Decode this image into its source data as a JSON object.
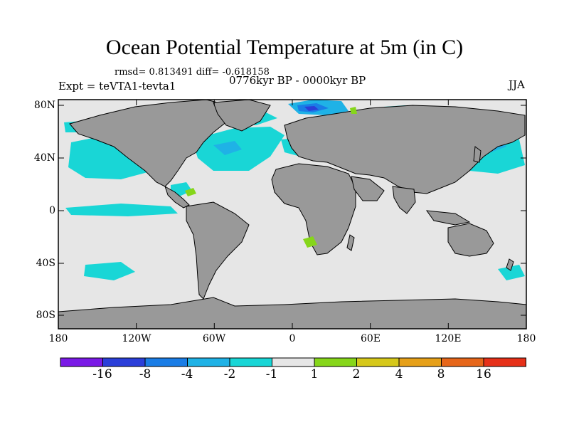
{
  "title": "Ocean Potential Temperature at 5m (in C)",
  "stats": "rmsd= 0.813491 diff= -0.618158",
  "experiment": "Expt = teVTA1-tevta1",
  "period": "0776kyr BP - 0000kyr BP",
  "season": "JJA",
  "y_ticks": [
    "80N",
    "40N",
    "0",
    "40S",
    "80S"
  ],
  "x_ticks": [
    "180",
    "120W",
    "60W",
    "0",
    "60E",
    "120E",
    "180"
  ],
  "colors": {
    "land": "#999999",
    "ocean_neutral": "#e6e6e6",
    "cool_minus1": "#19d6d6",
    "cool_minus2": "#1fb2e6",
    "cool_minus4": "#1a7de6",
    "cool_minus8": "#2b3fd9",
    "warm_plus1": "#86d61a"
  },
  "legend": {
    "labels": [
      "-16",
      "-8",
      "-4",
      "-2",
      "-1",
      "1",
      "2",
      "4",
      "8",
      "16"
    ],
    "colors": [
      "#7a1ae6",
      "#2b3fd9",
      "#1a7de6",
      "#1fb2e6",
      "#19d6d6",
      "#e6e6e6",
      "#86d61a",
      "#d6c81a",
      "#e6a019",
      "#e6661a",
      "#e63019"
    ]
  }
}
